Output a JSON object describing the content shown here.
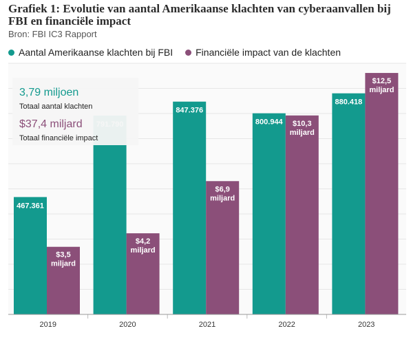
{
  "title": "Grafiek 1: Evolutie van aantal Amerikaanse klachten van cyberaanvallen bij FBI en financiële impact",
  "source": "Bron: FBI IC3 Rapport",
  "colors": {
    "teal": "#139a8e",
    "purple": "#8b4f79",
    "stat_teal": "#139a8e",
    "stat_purple": "#8b4f79"
  },
  "stats": {
    "complaints_value": "3,79 miljoen",
    "complaints_label": "Totaal aantal klachten",
    "impact_value": "$37,4 miljard",
    "impact_label": "Totaal financiële impact"
  },
  "chart_data": {
    "type": "bar",
    "categories": [
      "2019",
      "2020",
      "2021",
      "2022",
      "2023"
    ],
    "series": [
      {
        "name": "Aantal Amerikaanse klachten bij FBI",
        "values": [
          467361,
          791790,
          847376,
          800944,
          880418
        ],
        "labels": [
          "467.361",
          "791.790",
          "847.376",
          "800.944",
          "880.418"
        ]
      },
      {
        "name": "Financiële impact van de klachten",
        "values": [
          3.5,
          4.2,
          6.9,
          10.3,
          12.5
        ],
        "labels": [
          [
            "$3,5",
            "miljard"
          ],
          [
            "$4,2",
            "miljard"
          ],
          [
            "$6,9",
            "miljard"
          ],
          [
            "$10,3",
            "miljard"
          ],
          [
            "$12,5",
            "miljard"
          ]
        ]
      }
    ],
    "legend_position": "top-left",
    "grid": true
  }
}
